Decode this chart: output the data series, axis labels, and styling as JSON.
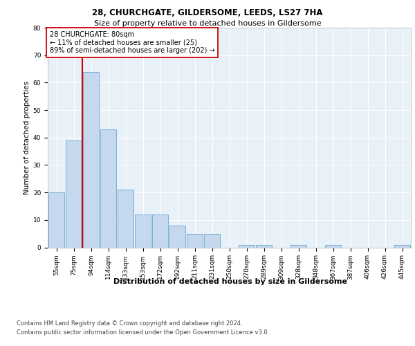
{
  "title1": "28, CHURCHGATE, GILDERSOME, LEEDS, LS27 7HA",
  "title2": "Size of property relative to detached houses in Gildersome",
  "xlabel": "Distribution of detached houses by size in Gildersome",
  "ylabel": "Number of detached properties",
  "categories": [
    "55sqm",
    "75sqm",
    "94sqm",
    "114sqm",
    "133sqm",
    "153sqm",
    "172sqm",
    "192sqm",
    "211sqm",
    "231sqm",
    "250sqm",
    "270sqm",
    "289sqm",
    "309sqm",
    "328sqm",
    "348sqm",
    "367sqm",
    "387sqm",
    "406sqm",
    "426sqm",
    "445sqm"
  ],
  "values": [
    20,
    39,
    64,
    43,
    21,
    12,
    12,
    8,
    5,
    5,
    0,
    1,
    1,
    0,
    1,
    0,
    1,
    0,
    0,
    0,
    1
  ],
  "bar_color": "#c5d8ed",
  "bar_edge_color": "#7aaed6",
  "vline_x": 1.5,
  "vline_color": "#cc0000",
  "ylim": [
    0,
    80
  ],
  "yticks": [
    0,
    10,
    20,
    30,
    40,
    50,
    60,
    70,
    80
  ],
  "annotation_title": "28 CHURCHGATE: 80sqm",
  "annotation_line1": "← 11% of detached houses are smaller (25)",
  "annotation_line2": "89% of semi-detached houses are larger (202) →",
  "annotation_box_color": "#ffffff",
  "annotation_box_edge_color": "#cc0000",
  "footer1": "Contains HM Land Registry data © Crown copyright and database right 2024.",
  "footer2": "Contains public sector information licensed under the Open Government Licence v3.0.",
  "background_color": "#e8f0f8",
  "grid_color": "#ffffff",
  "title1_fontsize": 8.5,
  "title2_fontsize": 8,
  "ylabel_fontsize": 7.5,
  "xlabel_fontsize": 8,
  "tick_fontsize": 6.5,
  "annotation_fontsize": 7,
  "footer_fontsize": 6
}
